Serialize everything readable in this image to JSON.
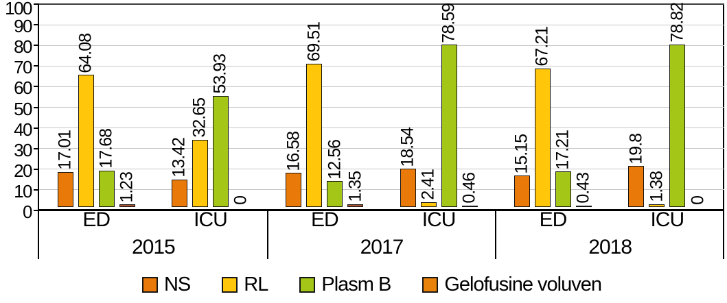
{
  "chart_data": {
    "type": "bar",
    "title": "",
    "xlabel": "",
    "ylabel": "",
    "ylim": [
      0,
      100
    ],
    "ytick_step": 10,
    "yticks": [
      "0",
      "10",
      "20",
      "30",
      "40",
      "50",
      "60",
      "70",
      "80",
      "90",
      "100"
    ],
    "grid": "horizontal",
    "grid_color": "#c6c6c6",
    "legend_position": "bottom",
    "series": [
      {
        "name": "NS",
        "legend_color": "#E97908",
        "bar_color": "#E97908"
      },
      {
        "name": "RL",
        "legend_color": "#FFC60A",
        "bar_color": "#FFC60A"
      },
      {
        "name": "Plasm B",
        "legend_color": "#A3C617",
        "bar_color": "#A3C617"
      },
      {
        "name": "Gelofusine voluven",
        "legend_color": "#E8820B",
        "bar_color": "#A9532F"
      }
    ],
    "groups": [
      {
        "year": "2015",
        "subgroups": [
          {
            "label": "ED",
            "values": [
              17.01,
              64.08,
              17.68,
              1.23
            ]
          },
          {
            "label": "ICU",
            "values": [
              13.42,
              32.65,
              53.93,
              0
            ]
          }
        ]
      },
      {
        "year": "2017",
        "subgroups": [
          {
            "label": "ED",
            "values": [
              16.58,
              69.51,
              12.56,
              1.35
            ]
          },
          {
            "label": "ICU",
            "values": [
              18.54,
              2.41,
              78.59,
              0.46
            ]
          }
        ]
      },
      {
        "year": "2018",
        "subgroups": [
          {
            "label": "ED",
            "values": [
              15.15,
              67.21,
              17.21,
              0.43
            ]
          },
          {
            "label": "ICU",
            "values": [
              19.8,
              1.38,
              78.82,
              0
            ]
          }
        ]
      }
    ]
  }
}
